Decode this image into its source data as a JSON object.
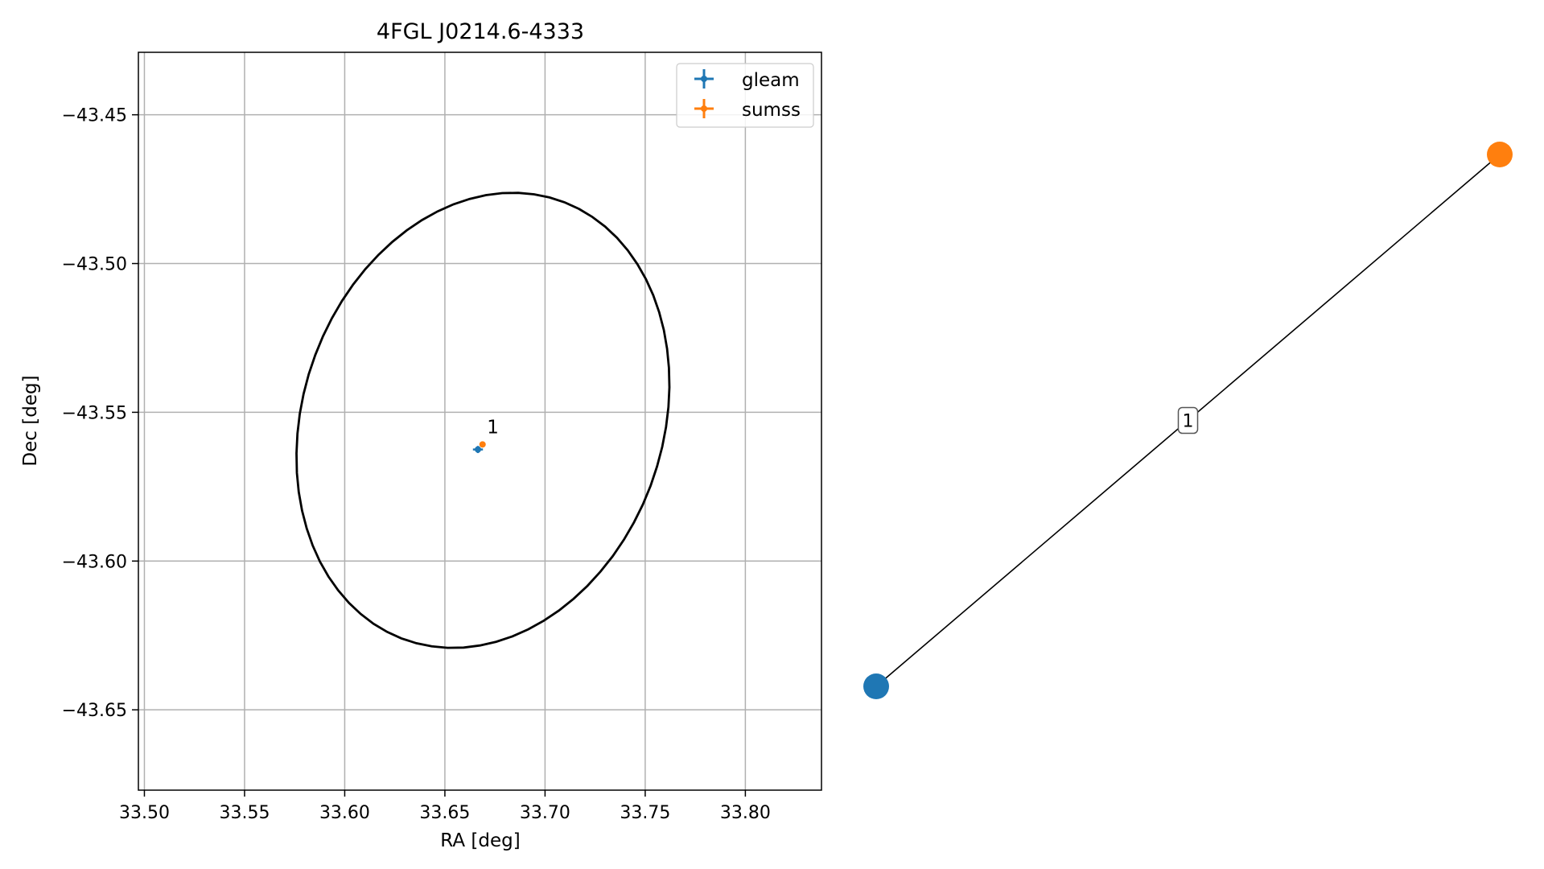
{
  "chart_data": [
    {
      "type": "scatter",
      "title": "4FGL J0214.6-4333",
      "xlabel": "RA [deg]",
      "ylabel": "Dec [deg]",
      "xlim": [
        33.497,
        33.838
      ],
      "ylim": [
        -43.677,
        -43.429
      ],
      "xticks": [
        33.5,
        33.55,
        33.6,
        33.65,
        33.7,
        33.75,
        33.8
      ],
      "xtick_labels": [
        "33.50",
        "33.55",
        "33.60",
        "33.65",
        "33.70",
        "33.75",
        "33.80"
      ],
      "yticks": [
        -43.45,
        -43.5,
        -43.55,
        -43.6,
        -43.65
      ],
      "ytick_labels": [
        "−43.45",
        "−43.50",
        "−43.55",
        "−43.60",
        "−43.65"
      ],
      "grid": true,
      "legend_position": "top-right",
      "series": [
        {
          "name": "gleam",
          "color": "#1f77b4",
          "points": [
            {
              "x": 33.6665,
              "y": -43.5625,
              "xerr": 0.0025,
              "yerr": 0.0012
            }
          ]
        },
        {
          "name": "sumss",
          "color": "#ff7f0e",
          "points": [
            {
              "x": 33.6688,
              "y": -43.5608,
              "xerr": 0.0006,
              "yerr": 0.0006
            }
          ]
        }
      ],
      "annotations": [
        {
          "text": "1",
          "x": 33.671,
          "y": -43.557
        }
      ],
      "ellipse": {
        "center_x": 33.669,
        "center_y": -43.5527,
        "semi_major_deg": 0.0791,
        "semi_minor_deg": 0.0644,
        "angle_deg": 64,
        "color": "#000000"
      }
    },
    {
      "type": "network",
      "nodes": [
        {
          "id": "gleam",
          "color": "#1f77b4",
          "x": 0.0,
          "y": 0.0
        },
        {
          "id": "sumss",
          "color": "#ff7f0e",
          "x": 1.0,
          "y": 1.0
        }
      ],
      "edges": [
        {
          "source": "gleam",
          "target": "sumss",
          "label": "1"
        }
      ]
    }
  ]
}
